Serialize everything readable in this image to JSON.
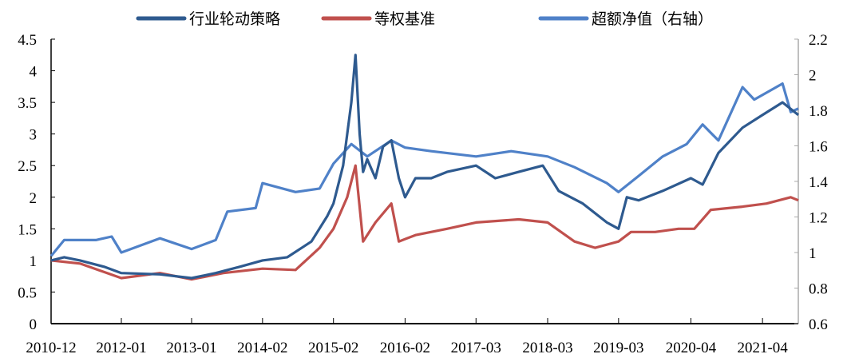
{
  "chart_data": {
    "type": "line",
    "title": "",
    "xlabel": "",
    "ylabel": "",
    "y2label": "",
    "legend_position": "top",
    "x_ticks": [
      {
        "label": "2010-12",
        "x": 2010.92
      },
      {
        "label": "2012-01",
        "x": 2011.94
      },
      {
        "label": "2013-01",
        "x": 2012.96
      },
      {
        "label": "2014-02",
        "x": 2013.99
      },
      {
        "label": "2015-02",
        "x": 2015.02
      },
      {
        "label": "2016-02",
        "x": 2016.06
      },
      {
        "label": "2017-03",
        "x": 2017.09
      },
      {
        "label": "2018-03",
        "x": 2018.13
      },
      {
        "label": "2019-03",
        "x": 2019.16
      },
      {
        "label": "2020-04",
        "x": 2020.21
      },
      {
        "label": "2021-04",
        "x": 2021.25
      }
    ],
    "xlim": [
      2010.92,
      2021.77
    ],
    "ylim": [
      0,
      4.5
    ],
    "y_ticks": [
      "0",
      "0.5",
      "1",
      "1.5",
      "2",
      "2.5",
      "3",
      "3.5",
      "4",
      "4.5"
    ],
    "y2lim": [
      0.6,
      2.2
    ],
    "y2_ticks": [
      "0.6",
      "0.8",
      "1",
      "1.2",
      "1.4",
      "1.6",
      "1.8",
      "2",
      "2.2"
    ],
    "series": [
      {
        "name": "行业轮动策略",
        "axis": "left",
        "color": "#2E5A8F",
        "points": [
          [
            2010.92,
            1.0
          ],
          [
            2011.11,
            1.05
          ],
          [
            2011.34,
            1.0
          ],
          [
            2011.69,
            0.9
          ],
          [
            2011.94,
            0.8
          ],
          [
            2012.5,
            0.78
          ],
          [
            2012.96,
            0.72
          ],
          [
            2013.31,
            0.8
          ],
          [
            2013.66,
            0.9
          ],
          [
            2013.99,
            1.0
          ],
          [
            2014.35,
            1.05
          ],
          [
            2014.7,
            1.3
          ],
          [
            2014.93,
            1.7
          ],
          [
            2015.02,
            1.9
          ],
          [
            2015.16,
            2.5
          ],
          [
            2015.28,
            3.5
          ],
          [
            2015.34,
            4.25
          ],
          [
            2015.4,
            3.0
          ],
          [
            2015.45,
            2.4
          ],
          [
            2015.51,
            2.6
          ],
          [
            2015.63,
            2.3
          ],
          [
            2015.74,
            2.8
          ],
          [
            2015.86,
            2.9
          ],
          [
            2015.97,
            2.3
          ],
          [
            2016.06,
            2.0
          ],
          [
            2016.21,
            2.3
          ],
          [
            2016.44,
            2.3
          ],
          [
            2016.67,
            2.4
          ],
          [
            2017.09,
            2.5
          ],
          [
            2017.37,
            2.3
          ],
          [
            2017.71,
            2.4
          ],
          [
            2018.06,
            2.5
          ],
          [
            2018.29,
            2.1
          ],
          [
            2018.64,
            1.9
          ],
          [
            2018.99,
            1.6
          ],
          [
            2019.16,
            1.5
          ],
          [
            2019.28,
            2.0
          ],
          [
            2019.45,
            1.95
          ],
          [
            2019.8,
            2.1
          ],
          [
            2020.21,
            2.3
          ],
          [
            2020.38,
            2.2
          ],
          [
            2020.61,
            2.7
          ],
          [
            2020.96,
            3.1
          ],
          [
            2021.25,
            3.3
          ],
          [
            2021.54,
            3.5
          ],
          [
            2021.77,
            3.3
          ]
        ]
      },
      {
        "name": "等权基准",
        "axis": "left",
        "color": "#C0504D",
        "points": [
          [
            2010.92,
            1.0
          ],
          [
            2011.34,
            0.95
          ],
          [
            2011.94,
            0.72
          ],
          [
            2012.5,
            0.8
          ],
          [
            2012.96,
            0.7
          ],
          [
            2013.42,
            0.8
          ],
          [
            2013.99,
            0.87
          ],
          [
            2014.47,
            0.85
          ],
          [
            2014.82,
            1.2
          ],
          [
            2015.02,
            1.5
          ],
          [
            2015.22,
            2.0
          ],
          [
            2015.34,
            2.5
          ],
          [
            2015.45,
            1.3
          ],
          [
            2015.63,
            1.6
          ],
          [
            2015.86,
            1.9
          ],
          [
            2015.97,
            1.3
          ],
          [
            2016.21,
            1.4
          ],
          [
            2016.67,
            1.5
          ],
          [
            2017.09,
            1.6
          ],
          [
            2017.71,
            1.65
          ],
          [
            2018.13,
            1.6
          ],
          [
            2018.52,
            1.3
          ],
          [
            2018.82,
            1.2
          ],
          [
            2019.16,
            1.3
          ],
          [
            2019.34,
            1.45
          ],
          [
            2019.69,
            1.45
          ],
          [
            2020.03,
            1.5
          ],
          [
            2020.26,
            1.5
          ],
          [
            2020.5,
            1.8
          ],
          [
            2020.96,
            1.85
          ],
          [
            2021.31,
            1.9
          ],
          [
            2021.66,
            2.0
          ],
          [
            2021.77,
            1.95
          ]
        ]
      },
      {
        "name": "超额净值（右轴）",
        "axis": "right",
        "color": "#4F81C8",
        "points": [
          [
            2010.92,
            0.98
          ],
          [
            2011.11,
            1.07
          ],
          [
            2011.57,
            1.07
          ],
          [
            2011.8,
            1.09
          ],
          [
            2011.94,
            1.0
          ],
          [
            2012.5,
            1.08
          ],
          [
            2012.96,
            1.02
          ],
          [
            2013.31,
            1.07
          ],
          [
            2013.48,
            1.23
          ],
          [
            2013.89,
            1.25
          ],
          [
            2013.99,
            1.39
          ],
          [
            2014.47,
            1.34
          ],
          [
            2014.82,
            1.36
          ],
          [
            2015.02,
            1.5
          ],
          [
            2015.28,
            1.61
          ],
          [
            2015.51,
            1.54
          ],
          [
            2015.86,
            1.63
          ],
          [
            2016.06,
            1.59
          ],
          [
            2016.44,
            1.57
          ],
          [
            2017.09,
            1.54
          ],
          [
            2017.6,
            1.57
          ],
          [
            2018.13,
            1.54
          ],
          [
            2018.52,
            1.48
          ],
          [
            2018.99,
            1.39
          ],
          [
            2019.16,
            1.34
          ],
          [
            2019.45,
            1.43
          ],
          [
            2019.8,
            1.54
          ],
          [
            2020.15,
            1.61
          ],
          [
            2020.38,
            1.72
          ],
          [
            2020.61,
            1.63
          ],
          [
            2020.96,
            1.93
          ],
          [
            2021.13,
            1.86
          ],
          [
            2021.54,
            1.95
          ],
          [
            2021.66,
            1.79
          ],
          [
            2021.77,
            1.81
          ]
        ]
      }
    ]
  }
}
